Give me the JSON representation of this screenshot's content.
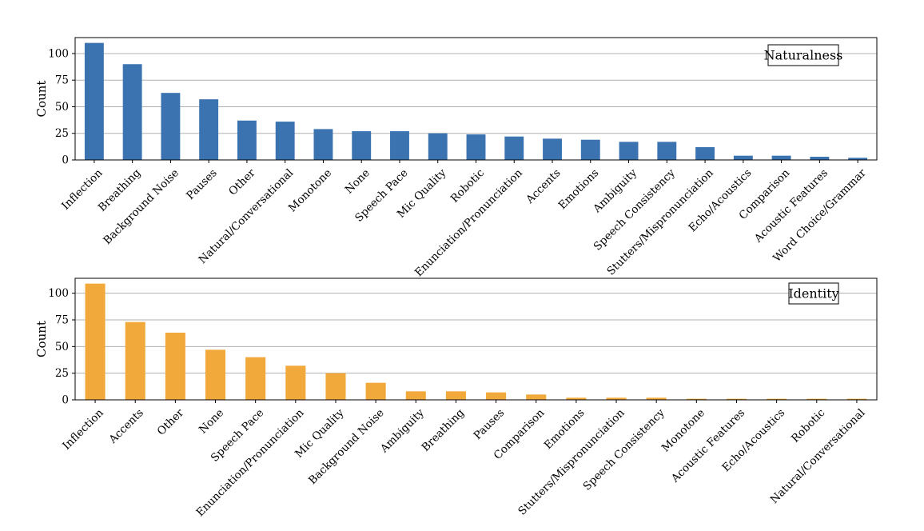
{
  "chart_data": [
    {
      "type": "bar",
      "legend_label": "Naturalness",
      "legend_position": "top-right",
      "ylabel": "Count",
      "ylim": [
        0,
        115
      ],
      "yticks": [
        0,
        25,
        50,
        75,
        100
      ],
      "grid": "horizontal",
      "color": "#3a73b0",
      "categories": [
        "Inflection",
        "Breathing",
        "Background Noise",
        "Pauses",
        "Other",
        "Natural/Conversational",
        "Monotone",
        "None",
        "Speech Pace",
        "Mic Quality",
        "Robotic",
        "Enunciation/Pronunciation",
        "Accents",
        "Emotions",
        "Ambiguity",
        "Speech Consistency",
        "Stutters/Mispronunciation",
        "Echo/Acoustics",
        "Comparison",
        "Acoustic Features",
        "Word Choice/Grammar"
      ],
      "values": [
        110,
        90,
        63,
        57,
        37,
        36,
        29,
        27,
        27,
        25,
        24,
        22,
        20,
        19,
        17,
        17,
        12,
        4,
        4,
        3,
        2
      ]
    },
    {
      "type": "bar",
      "legend_label": "Identity",
      "legend_position": "top-right",
      "ylabel": "Count",
      "ylim": [
        0,
        114
      ],
      "yticks": [
        0,
        25,
        50,
        75,
        100
      ],
      "grid": "horizontal",
      "color": "#f2a93b",
      "categories": [
        "Inflection",
        "Accents",
        "Other",
        "None",
        "Speech Pace",
        "Enunciation/Pronunciation",
        "Mic Quality",
        "Background Noise",
        "Ambiguity",
        "Breathing",
        "Pauses",
        "Comparison",
        "Emotions",
        "Stutters/Mispronunciation",
        "Speech Consistency",
        "Monotone",
        "Acoustic Features",
        "Echo/Acoustics",
        "Robotic",
        "Natural/Conversational"
      ],
      "values": [
        109,
        73,
        63,
        47,
        40,
        32,
        25,
        16,
        8,
        8,
        7,
        5,
        2,
        2,
        2,
        1,
        1,
        1,
        1,
        1
      ]
    }
  ]
}
